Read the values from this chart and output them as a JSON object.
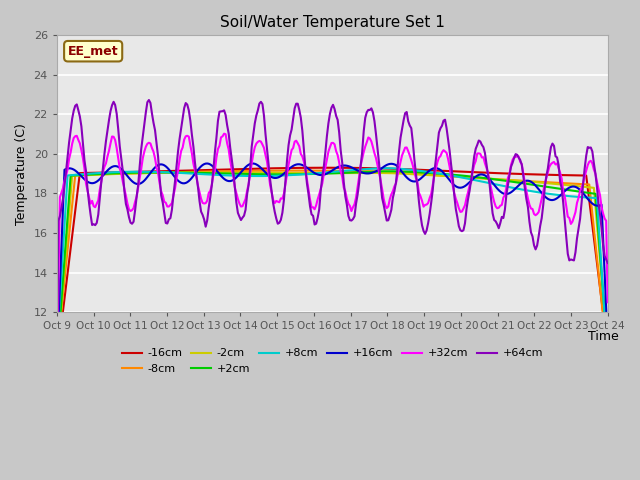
{
  "title": "Soil/Water Temperature Set 1",
  "xlabel": "Time",
  "ylabel": "Temperature (C)",
  "xlim": [
    0,
    15.0
  ],
  "ylim": [
    12,
    26
  ],
  "yticks": [
    12,
    14,
    16,
    18,
    20,
    22,
    24,
    26
  ],
  "xtick_labels": [
    "Oct 9",
    "Oct 10",
    "Oct 11",
    "Oct 12",
    "Oct 13",
    "Oct 14",
    "Oct 15",
    "Oct 16",
    "Oct 17",
    "Oct 18",
    "Oct 19",
    "Oct 20",
    "Oct 21",
    "Oct 22",
    "Oct 23",
    "Oct 24"
  ],
  "fig_bg": "#c8c8c8",
  "plot_bg": "#e8e8e8",
  "legend_label": "EE_met",
  "grid_color": "#ffffff",
  "series": {
    "-16cm": {
      "color": "#cc0000",
      "lw": 1.5
    },
    "-8cm": {
      "color": "#ff8800",
      "lw": 1.5
    },
    "-2cm": {
      "color": "#cccc00",
      "lw": 1.5
    },
    "+2cm": {
      "color": "#00cc00",
      "lw": 1.5
    },
    "+8cm": {
      "color": "#00cccc",
      "lw": 1.5
    },
    "+16cm": {
      "color": "#0000cc",
      "lw": 1.5
    },
    "+32cm": {
      "color": "#ff00ff",
      "lw": 1.5
    },
    "+64cm": {
      "color": "#8800bb",
      "lw": 1.5
    }
  }
}
